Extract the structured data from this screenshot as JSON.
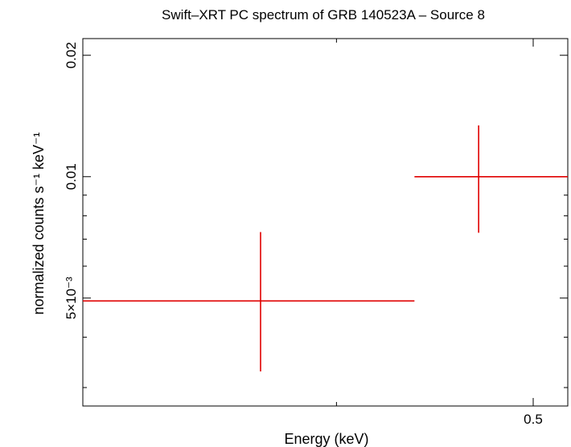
{
  "chart_data": {
    "type": "scatter",
    "title": "Swift–XRT PC spectrum of GRB 140523A – Source 8",
    "xlabel": "Energy (keV)",
    "ylabel": "normalized counts s⁻¹ keV⁻¹",
    "x_scale": "log",
    "y_scale": "log",
    "xlim": [
      0.3,
      0.52
    ],
    "ylim": [
      0.0027,
      0.022
    ],
    "x_ticks": [
      {
        "value": 0.5,
        "label": "0.5"
      }
    ],
    "y_ticks": [
      {
        "value": 0.005,
        "label": "5×10⁻³"
      },
      {
        "value": 0.01,
        "label": "0.01"
      },
      {
        "value": 0.02,
        "label": "0.02"
      }
    ],
    "grid": false,
    "series": [
      {
        "color": "#e00000",
        "points": [
          {
            "x": 0.367,
            "x_low": 0.3,
            "x_high": 0.437,
            "y": 0.00492,
            "y_low": 0.00329,
            "y_high": 0.00729
          },
          {
            "x": 0.47,
            "x_low": 0.437,
            "x_high": 0.52,
            "y": 0.01,
            "y_low": 0.00726,
            "y_high": 0.0134
          }
        ]
      }
    ]
  }
}
